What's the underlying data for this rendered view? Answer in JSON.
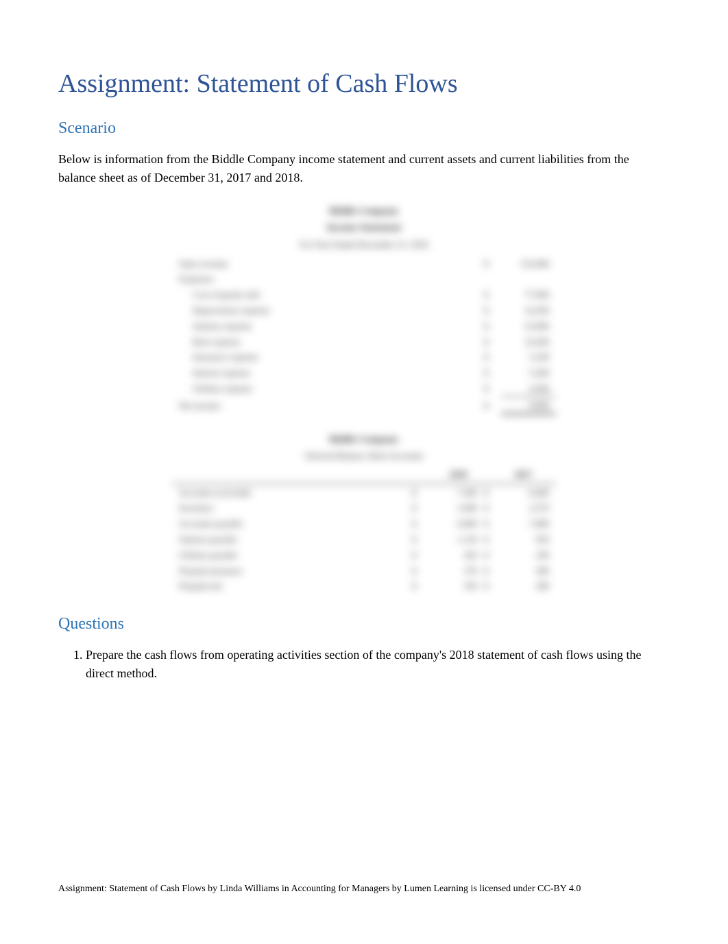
{
  "title": "Assignment: Statement of Cash Flows",
  "scenario": {
    "heading": "Scenario",
    "body": "Below is information from the Biddle Company income statement and current assets and current liabilities from the balance sheet as of December 31, 2017 and 2018."
  },
  "income_statement": {
    "company": "Biddle Company",
    "title": "Income Statement",
    "period": "For Year Ended December 31, 2018",
    "rows": [
      {
        "label": "Sales revenue",
        "currency": "$",
        "value": "152,000"
      },
      {
        "label": "Expenses:",
        "currency": "",
        "value": ""
      },
      {
        "label": "Cost of goods sold",
        "currency": "$",
        "value": "77,000",
        "indent": true
      },
      {
        "label": "Depreciation expense",
        "currency": "$",
        "value": "16,200",
        "indent": true
      },
      {
        "label": "Salaries expense",
        "currency": "$",
        "value": "25,000",
        "indent": true
      },
      {
        "label": "Rent expense",
        "currency": "$",
        "value": "10,200",
        "indent": true
      },
      {
        "label": "Insurance expense",
        "currency": "$",
        "value": "5,100",
        "indent": true
      },
      {
        "label": "Interest expense",
        "currency": "$",
        "value": "5,200",
        "indent": true
      },
      {
        "label": "Utilities expense",
        "currency": "$",
        "value": "4,300",
        "indent": true,
        "underline": true
      }
    ],
    "net_income": {
      "label": "Net income",
      "currency": "$",
      "value": "9,000"
    }
  },
  "balance_sheet": {
    "company": "Biddle Company",
    "title": "Selected Balance Sheet Accounts",
    "col1": "2018",
    "col2": "2017",
    "rows": [
      {
        "label": "Accounts receivable",
        "c1": "$",
        "v1": "7,300",
        "c2": "$",
        "v2": "8,400"
      },
      {
        "label": "Inventory",
        "c1": "$",
        "v1": "3,400",
        "c2": "$",
        "v2": "2,570"
      },
      {
        "label": "Accounts payable",
        "c1": "$",
        "v1": "6,000",
        "c2": "$",
        "v2": "7,080"
      },
      {
        "label": "Salaries payable",
        "c1": "$",
        "v1": "1,120",
        "c2": "$",
        "v2": "920"
      },
      {
        "label": "Utilities payable",
        "c1": "$",
        "v1": "420",
        "c2": "$",
        "v2": "240"
      },
      {
        "label": "Prepaid insurance",
        "c1": "$",
        "v1": "370",
        "c2": "$",
        "v2": "490"
      },
      {
        "label": "Prepaid rent",
        "c1": "$",
        "v1": "350",
        "c2": "$",
        "v2": "280"
      }
    ]
  },
  "questions": {
    "heading": "Questions",
    "items": [
      "Prepare the cash flows from operating activities section of the company's 2018 statement of cash flows using the direct method."
    ]
  },
  "footer": "Assignment: Statement of Cash Flows by Linda Williams in Accounting for Managers by Lumen Learning is licensed under CC-BY 4.0"
}
